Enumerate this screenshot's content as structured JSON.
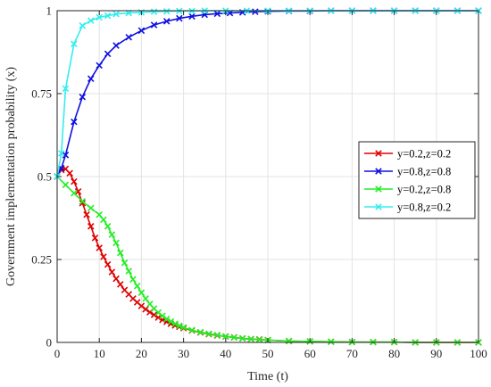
{
  "chart_data": {
    "type": "line",
    "title": "",
    "xlabel": "Time (t)",
    "ylabel": "Government implementation probability (x)",
    "xlim": [
      0,
      100
    ],
    "ylim": [
      0,
      1
    ],
    "xticks": [
      0,
      10,
      20,
      30,
      40,
      50,
      60,
      70,
      80,
      90,
      100
    ],
    "yticks": [
      0,
      0.25,
      0.5,
      0.75,
      1
    ],
    "xtick_labels": [
      "0",
      "10",
      "20",
      "30",
      "40",
      "50",
      "60",
      "70",
      "80",
      "90",
      "100"
    ],
    "ytick_labels": [
      "0",
      "0.25",
      "0.5",
      "0.75",
      "1"
    ],
    "grid": true,
    "legend_position": "right",
    "marker": "x",
    "series": [
      {
        "name": "y=0.2,z=0.2",
        "color": "#e00000",
        "x": [
          0,
          1,
          2,
          3,
          4,
          5,
          6,
          7,
          8,
          9,
          10,
          11,
          12,
          13,
          14,
          15,
          16,
          17,
          18,
          19,
          20,
          21,
          22,
          23,
          24,
          25,
          26,
          27,
          28,
          29,
          30,
          32,
          34,
          36,
          38,
          40,
          42,
          44,
          46,
          48,
          50,
          55,
          60,
          65,
          70,
          75,
          80,
          85,
          90,
          95,
          100
        ],
        "y": [
          0.5,
          0.52,
          0.523,
          0.51,
          0.485,
          0.455,
          0.42,
          0.385,
          0.35,
          0.315,
          0.285,
          0.258,
          0.235,
          0.212,
          0.192,
          0.175,
          0.158,
          0.145,
          0.132,
          0.121,
          0.11,
          0.1,
          0.091,
          0.083,
          0.075,
          0.068,
          0.062,
          0.056,
          0.051,
          0.047,
          0.043,
          0.036,
          0.03,
          0.025,
          0.021,
          0.018,
          0.015,
          0.012,
          0.01,
          0.009,
          0.007,
          0.004,
          0.003,
          0.002,
          0.001,
          0.001,
          0.001,
          0.0,
          0.0,
          0.0,
          0.0
        ]
      },
      {
        "name": "y=0.8,z=0.8",
        "color": "#1010e0",
        "x": [
          0,
          1,
          2,
          4,
          6,
          8,
          10,
          12,
          14,
          17,
          20,
          23,
          26,
          29,
          32,
          35,
          38,
          41,
          44,
          47,
          50,
          55,
          60,
          65,
          70,
          75,
          80,
          85,
          90,
          95,
          100
        ],
        "y": [
          0.5,
          0.525,
          0.565,
          0.665,
          0.74,
          0.795,
          0.835,
          0.87,
          0.895,
          0.92,
          0.94,
          0.957,
          0.968,
          0.977,
          0.983,
          0.988,
          0.991,
          0.993,
          0.995,
          0.997,
          0.998,
          0.999,
          0.999,
          1.0,
          1.0,
          1.0,
          1.0,
          1.0,
          1.0,
          1.0,
          1.0
        ]
      },
      {
        "name": "y=0.2,z=0.8",
        "color": "#22ee22",
        "x": [
          0,
          2,
          4,
          6,
          8,
          10,
          11,
          12,
          13,
          14,
          15,
          16,
          17,
          18,
          19,
          20,
          21,
          22,
          23,
          24,
          25,
          26,
          27,
          28,
          29,
          30,
          32,
          34,
          36,
          38,
          40,
          42,
          44,
          46,
          48,
          50,
          55,
          60,
          65,
          70,
          75,
          80,
          85,
          90,
          95,
          100
        ],
        "y": [
          0.5,
          0.475,
          0.45,
          0.425,
          0.405,
          0.385,
          0.37,
          0.35,
          0.325,
          0.3,
          0.27,
          0.24,
          0.215,
          0.19,
          0.17,
          0.15,
          0.132,
          0.116,
          0.102,
          0.09,
          0.08,
          0.071,
          0.063,
          0.056,
          0.05,
          0.045,
          0.037,
          0.031,
          0.026,
          0.022,
          0.018,
          0.015,
          0.012,
          0.01,
          0.008,
          0.007,
          0.004,
          0.003,
          0.002,
          0.001,
          0.001,
          0.001,
          0.0,
          0.0,
          0.0,
          0.0
        ]
      },
      {
        "name": "y=0.8,z=0.2",
        "color": "#33eeee",
        "x": [
          0,
          1,
          2,
          4,
          6,
          8,
          10,
          12,
          14,
          17,
          20,
          23,
          26,
          29,
          32,
          35,
          40,
          45,
          50,
          55,
          60,
          65,
          70,
          75,
          80,
          85,
          90,
          95,
          100
        ],
        "y": [
          0.5,
          0.57,
          0.765,
          0.9,
          0.955,
          0.97,
          0.98,
          0.985,
          0.99,
          0.993,
          0.995,
          0.997,
          0.998,
          0.999,
          0.999,
          1.0,
          1.0,
          1.0,
          1.0,
          1.0,
          1.0,
          1.0,
          1.0,
          1.0,
          1.0,
          1.0,
          1.0,
          1.0,
          1.0
        ]
      }
    ]
  }
}
